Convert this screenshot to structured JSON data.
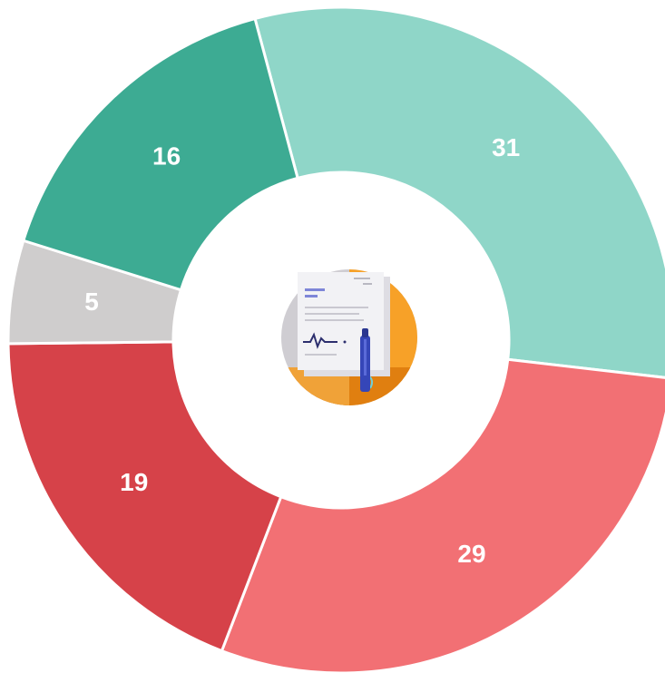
{
  "chart_data": {
    "type": "donut",
    "values": [
      31,
      29,
      19,
      5,
      16
    ],
    "colors": [
      "#8fd6c8",
      "#f27074",
      "#d64249",
      "#cfcdcd",
      "#3dab93"
    ]
  }
}
